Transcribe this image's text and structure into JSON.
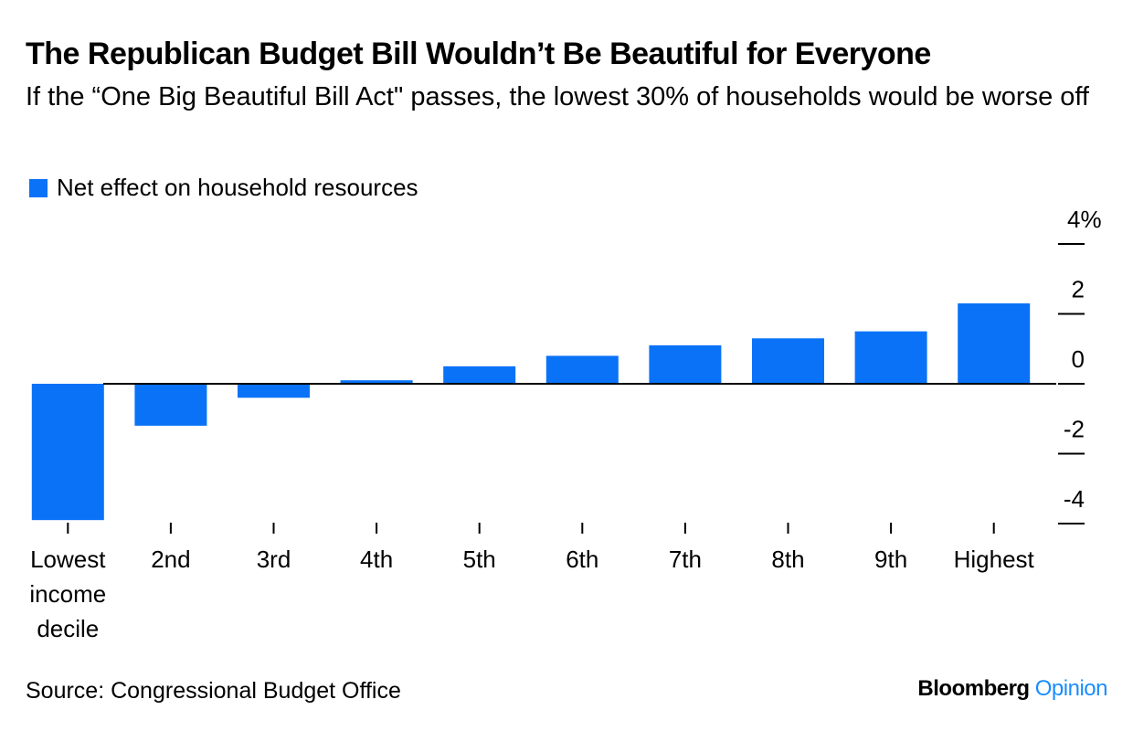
{
  "title": "The Republican Budget Bill Wouldn’t Be Beautiful for Everyone",
  "subtitle": "If the “One Big Beautiful Bill Act\" passes, the lowest 30% of households would be worse off",
  "source": "Source: Congressional Budget Office",
  "brand": {
    "name": "Bloomberg",
    "accent": "Opinion"
  },
  "colors": {
    "bar": "#0a72f7",
    "accent": "#1a8cff",
    "axis": "#000000"
  },
  "chart_data": {
    "type": "bar",
    "categories": [
      "Lowest income decile",
      "2nd",
      "3rd",
      "4th",
      "5th",
      "6th",
      "7th",
      "8th",
      "9th",
      "Highest"
    ],
    "series": [
      {
        "name": "Net effect on household resources",
        "values": [
          -3.9,
          -1.2,
          -0.4,
          0.1,
          0.5,
          0.8,
          1.1,
          1.3,
          1.5,
          2.3
        ]
      }
    ],
    "ylim": [
      -4,
      4
    ],
    "yticks": [
      4,
      2,
      0,
      -2,
      -4
    ],
    "ytick_labels": [
      "4%",
      "2",
      "0",
      "-2",
      "-4"
    ],
    "xlabel": "",
    "ylabel": "",
    "legend": "top-left",
    "grid": false
  }
}
